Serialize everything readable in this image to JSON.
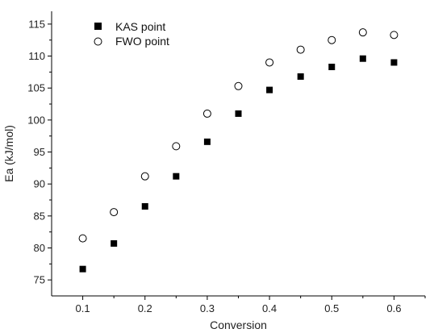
{
  "chart_data": {
    "type": "scatter",
    "xlabel": "Conversion",
    "ylabel": "Ea (kJ/mol)",
    "xlim": [
      0.05,
      0.65
    ],
    "ylim": [
      72.5,
      117
    ],
    "xticks": [
      0.1,
      0.2,
      0.3,
      0.4,
      0.5,
      0.6
    ],
    "xtick_labels": [
      "0.1",
      "0.2",
      "0.3",
      "0.4",
      "0.5",
      "0.6"
    ],
    "yticks": [
      75,
      80,
      85,
      90,
      95,
      100,
      105,
      110,
      115
    ],
    "ytick_labels": [
      "75",
      "80",
      "85",
      "90",
      "95",
      "100",
      "105",
      "110",
      "115"
    ],
    "grid": false,
    "legend_position": "top-left",
    "series": [
      {
        "name": "KAS point",
        "marker": "filled-square",
        "color": "#000000",
        "x": [
          0.1,
          0.15,
          0.2,
          0.25,
          0.3,
          0.35,
          0.4,
          0.45,
          0.5,
          0.55,
          0.6
        ],
        "y": [
          76.7,
          80.7,
          86.5,
          91.2,
          96.6,
          101.0,
          104.7,
          106.8,
          108.3,
          109.6,
          109.0
        ]
      },
      {
        "name": "FWO point",
        "marker": "open-circle",
        "color": "#000000",
        "x": [
          0.1,
          0.15,
          0.2,
          0.25,
          0.3,
          0.35,
          0.4,
          0.45,
          0.5,
          0.55,
          0.6
        ],
        "y": [
          81.5,
          85.6,
          91.2,
          95.9,
          101.0,
          105.3,
          109.0,
          111.0,
          112.5,
          113.7,
          113.3
        ]
      }
    ]
  }
}
